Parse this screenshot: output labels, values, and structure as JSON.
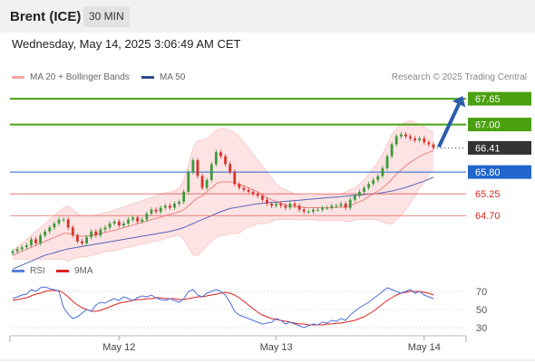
{
  "header": {
    "instrument": "Brent (ICE)",
    "timeframe": "30 MIN"
  },
  "datetime": "Wednesday, May 14, 2025 3:06:49 AM CET",
  "legend": {
    "bb_label": "MA 20 + Bollinger Bands",
    "ma50_label": "MA 50",
    "rsi_label": "RSI",
    "rsi_ma_label": "9MA"
  },
  "credit": "Research © 2025 Trading Central",
  "colors": {
    "up_candle": "#3c9a3c",
    "down_candle": "#d9332a",
    "bollinger_fill": "#fde0e0",
    "ma20": "#f08080",
    "ma50": "#5566bb",
    "resistance": "#4aa010",
    "pivot": "#2266cc",
    "support": "#e06060",
    "last_price_bg": "#333333",
    "rsi_line": "#4a6fd8",
    "rsi_ma_line": "#e02020",
    "arrow": "#2a5ca8"
  },
  "chart_data": [
    {
      "type": "candlestick",
      "ylim": [
        63.7,
        67.95
      ],
      "x_tick_labels": [
        "May 12",
        "May 13",
        "May 14"
      ],
      "levels": [
        {
          "label": "67.65",
          "value": 67.65,
          "kind": "resistance"
        },
        {
          "label": "67.00",
          "value": 67.0,
          "kind": "resistance"
        },
        {
          "label": "66.41",
          "value": 66.41,
          "kind": "last"
        },
        {
          "label": "65.80",
          "value": 65.8,
          "kind": "pivot"
        },
        {
          "label": "65.25",
          "value": 65.25,
          "kind": "support"
        },
        {
          "label": "64.70",
          "value": 64.7,
          "kind": "support"
        }
      ],
      "close": [
        63.8,
        63.85,
        63.9,
        63.95,
        64.1,
        64.0,
        64.2,
        64.3,
        64.4,
        64.5,
        64.6,
        64.6,
        64.4,
        64.2,
        64.05,
        64.0,
        64.15,
        64.3,
        64.2,
        64.35,
        64.4,
        64.5,
        64.55,
        64.45,
        64.5,
        64.6,
        64.65,
        64.55,
        64.6,
        64.75,
        64.85,
        64.8,
        64.9,
        64.95,
        64.9,
        65.0,
        65.05,
        65.3,
        65.8,
        66.1,
        65.7,
        65.4,
        65.6,
        66.0,
        66.3,
        66.2,
        66.0,
        65.8,
        65.5,
        65.4,
        65.35,
        65.3,
        65.25,
        65.2,
        65.1,
        65.0,
        64.95,
        65.0,
        64.95,
        64.9,
        65.0,
        64.95,
        64.85,
        64.8,
        64.8,
        64.85,
        64.85,
        64.9,
        64.9,
        64.95,
        64.95,
        65.0,
        64.9,
        65.1,
        65.2,
        65.3,
        65.4,
        65.5,
        65.6,
        65.7,
        65.9,
        66.2,
        66.5,
        66.7,
        66.75,
        66.7,
        66.65,
        66.6,
        66.65,
        66.55,
        66.5,
        66.41
      ],
      "ma20": [
        63.7,
        63.75,
        63.8,
        63.85,
        63.9,
        63.95,
        64.0,
        64.05,
        64.1,
        64.15,
        64.2,
        64.25,
        64.25,
        64.22,
        64.2,
        64.18,
        64.18,
        64.2,
        64.22,
        64.25,
        64.28,
        64.3,
        64.33,
        64.36,
        64.4,
        64.43,
        64.46,
        64.5,
        64.53,
        64.56,
        64.6,
        64.63,
        64.66,
        64.7,
        64.73,
        64.76,
        64.8,
        64.85,
        64.95,
        65.05,
        65.15,
        65.2,
        65.3,
        65.4,
        65.5,
        65.55,
        65.55,
        65.55,
        65.52,
        65.48,
        65.45,
        65.4,
        65.35,
        65.3,
        65.22,
        65.15,
        65.1,
        65.05,
        65.0,
        64.98,
        64.95,
        64.93,
        64.92,
        64.9,
        64.9,
        64.9,
        64.9,
        64.9,
        64.9,
        64.9,
        64.9,
        64.92,
        64.92,
        64.95,
        65.0,
        65.05,
        65.1,
        65.18,
        65.25,
        65.32,
        65.4,
        65.5,
        65.62,
        65.75,
        65.85,
        65.95,
        66.05,
        66.12,
        66.2,
        66.25,
        66.3,
        66.33
      ],
      "bb_upper": [
        63.8,
        63.9,
        64.0,
        64.1,
        64.2,
        64.3,
        64.4,
        64.5,
        64.6,
        64.7,
        64.8,
        64.9,
        64.95,
        64.85,
        64.75,
        64.7,
        64.7,
        64.7,
        64.72,
        64.75,
        64.78,
        64.8,
        64.84,
        64.88,
        64.92,
        64.96,
        65.0,
        65.04,
        65.08,
        65.12,
        65.16,
        65.2,
        65.24,
        65.28,
        65.3,
        65.33,
        65.4,
        65.6,
        66.0,
        66.4,
        66.6,
        66.6,
        66.65,
        66.75,
        66.85,
        66.9,
        66.9,
        66.85,
        66.8,
        66.7,
        66.55,
        66.4,
        66.25,
        66.1,
        65.95,
        65.8,
        65.65,
        65.5,
        65.4,
        65.35,
        65.3,
        65.25,
        65.25,
        65.2,
        65.2,
        65.2,
        65.22,
        65.22,
        65.22,
        65.22,
        65.22,
        65.25,
        65.3,
        65.35,
        65.4,
        65.5,
        65.6,
        65.75,
        65.9,
        66.05,
        66.25,
        66.5,
        66.75,
        66.9,
        67.0,
        67.05,
        67.1,
        67.05,
        67.0,
        66.95,
        66.85,
        66.8
      ],
      "bb_lower": [
        63.6,
        63.6,
        63.6,
        63.6,
        63.6,
        63.6,
        63.6,
        63.6,
        63.6,
        63.6,
        63.6,
        63.6,
        63.55,
        63.6,
        63.65,
        63.66,
        63.66,
        63.7,
        63.72,
        63.75,
        63.78,
        63.8,
        63.82,
        63.84,
        63.88,
        63.9,
        63.92,
        63.96,
        63.98,
        64.0,
        64.04,
        64.06,
        64.08,
        64.12,
        64.16,
        64.19,
        64.2,
        64.1,
        63.9,
        63.7,
        63.7,
        63.8,
        63.95,
        64.05,
        64.15,
        64.2,
        64.2,
        64.25,
        64.24,
        64.26,
        64.35,
        64.4,
        64.45,
        64.5,
        64.49,
        64.5,
        64.55,
        64.6,
        64.6,
        64.61,
        64.6,
        64.61,
        64.59,
        64.6,
        64.6,
        64.6,
        64.58,
        64.58,
        64.58,
        64.58,
        64.58,
        64.59,
        64.54,
        64.55,
        64.6,
        64.6,
        64.6,
        64.61,
        64.6,
        64.59,
        64.55,
        64.5,
        64.49,
        64.6,
        64.7,
        64.85,
        65.0,
        65.19,
        65.4,
        65.55,
        65.75,
        65.86
      ],
      "ma50": [
        63.35,
        63.4,
        63.45,
        63.5,
        63.55,
        63.6,
        63.65,
        63.7,
        63.73,
        63.76,
        63.8,
        63.83,
        63.86,
        63.88,
        63.9,
        63.92,
        63.94,
        63.96,
        63.98,
        64.0,
        64.02,
        64.04,
        64.06,
        64.08,
        64.1,
        64.12,
        64.14,
        64.16,
        64.18,
        64.2,
        64.22,
        64.24,
        64.26,
        64.28,
        64.3,
        64.33,
        64.36,
        64.4,
        64.45,
        64.5,
        64.55,
        64.6,
        64.65,
        64.7,
        64.75,
        64.8,
        64.84,
        64.88,
        64.9,
        64.92,
        64.94,
        64.96,
        64.98,
        65.0,
        65.01,
        65.02,
        65.03,
        65.04,
        65.05,
        65.06,
        65.07,
        65.08,
        65.09,
        65.1,
        65.11,
        65.12,
        65.13,
        65.14,
        65.15,
        65.16,
        65.17,
        65.18,
        65.19,
        65.2,
        65.21,
        65.22,
        65.23,
        65.24,
        65.25,
        65.26,
        65.28,
        65.3,
        65.32,
        65.35,
        65.38,
        65.41,
        65.45,
        65.49,
        65.53,
        65.57,
        65.62,
        65.67
      ]
    },
    {
      "type": "line",
      "ylim": [
        20,
        80
      ],
      "y_ticks": [
        70,
        50,
        30
      ],
      "series": [
        {
          "name": "RSI",
          "values": [
            62,
            64,
            66,
            67,
            72,
            70,
            74,
            75,
            73,
            72,
            70,
            52,
            45,
            40,
            42,
            46,
            50,
            48,
            55,
            58,
            57,
            60,
            62,
            60,
            64,
            62,
            60,
            63,
            65,
            64,
            66,
            63,
            61,
            60,
            62,
            60,
            58,
            62,
            70,
            72,
            66,
            64,
            68,
            70,
            72,
            70,
            66,
            58,
            48,
            44,
            42,
            40,
            38,
            36,
            34,
            35,
            36,
            40,
            38,
            34,
            36,
            34,
            32,
            30,
            32,
            34,
            33,
            36,
            35,
            38,
            37,
            40,
            38,
            44,
            48,
            52,
            55,
            58,
            62,
            66,
            70,
            74,
            72,
            70,
            68,
            70,
            72,
            68,
            70,
            66,
            64,
            62
          ]
        },
        {
          "name": "9MA",
          "values": [
            60,
            61,
            62,
            63,
            65,
            67,
            68,
            70,
            71,
            71,
            71,
            68,
            64,
            59,
            55,
            52,
            50,
            48,
            48,
            49,
            51,
            53,
            55,
            57,
            58,
            59,
            60,
            61,
            61,
            62,
            62,
            63,
            63,
            62,
            62,
            62,
            61,
            61,
            62,
            63,
            64,
            64,
            65,
            66,
            67,
            68,
            69,
            68,
            66,
            63,
            59,
            55,
            51,
            47,
            44,
            42,
            40,
            39,
            38,
            37,
            36,
            35,
            34,
            34,
            33,
            33,
            33,
            33,
            34,
            34,
            35,
            35,
            36,
            37,
            38,
            40,
            42,
            45,
            48,
            52,
            56,
            60,
            63,
            66,
            68,
            69,
            70,
            70,
            70,
            69,
            68,
            66
          ]
        }
      ]
    }
  ]
}
